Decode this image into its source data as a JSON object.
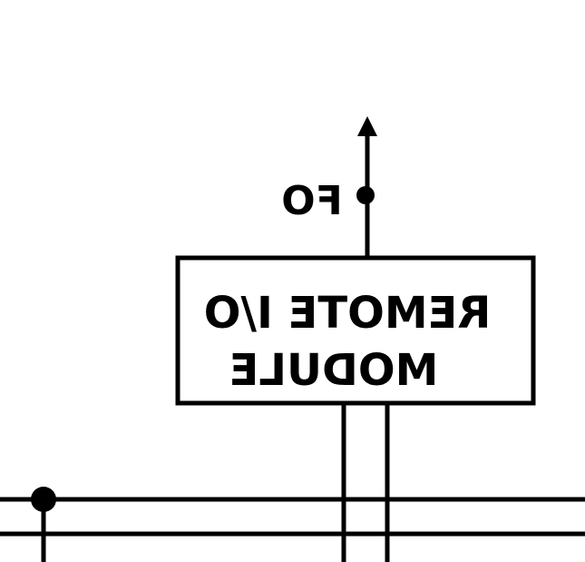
{
  "module": {
    "line1": "REMOTE I/O",
    "line2": "MODULE"
  },
  "signal": {
    "label": "FO"
  },
  "colors": {
    "ink": "#000000",
    "background": "#ffffff"
  }
}
